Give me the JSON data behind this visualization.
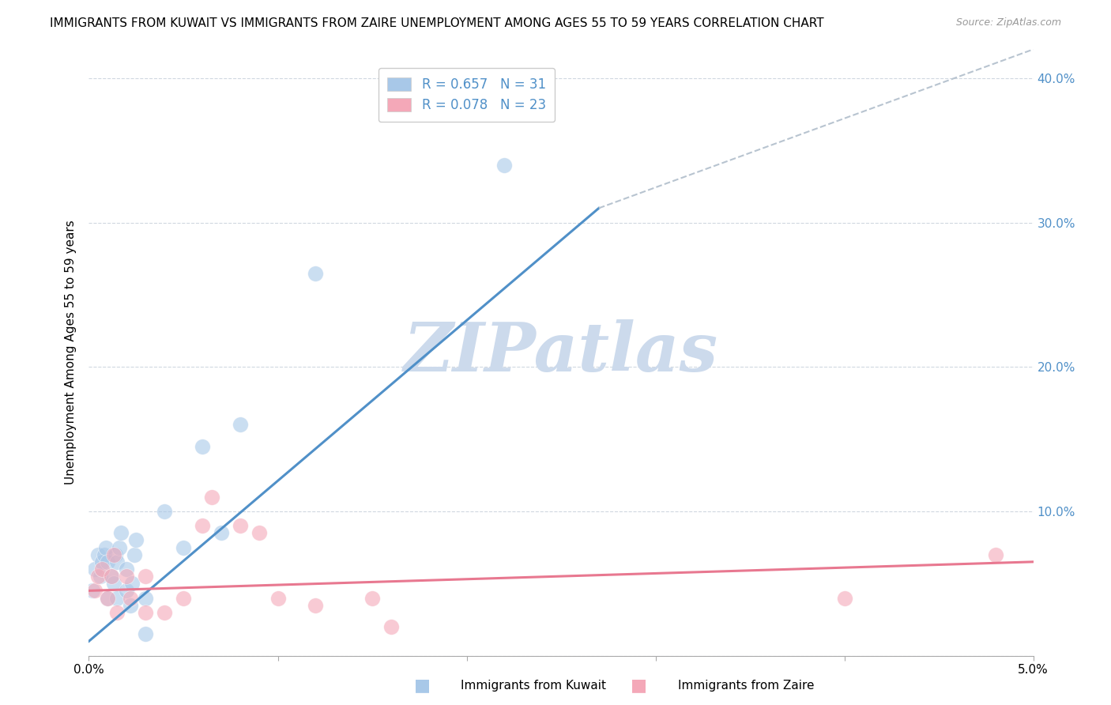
{
  "title": "IMMIGRANTS FROM KUWAIT VS IMMIGRANTS FROM ZAIRE UNEMPLOYMENT AMONG AGES 55 TO 59 YEARS CORRELATION CHART",
  "source": "Source: ZipAtlas.com",
  "ylabel": "Unemployment Among Ages 55 to 59 years",
  "xlim": [
    0.0,
    0.05
  ],
  "ylim": [
    0.0,
    0.42
  ],
  "x_ticks": [
    0.0,
    0.01,
    0.02,
    0.03,
    0.04,
    0.05
  ],
  "x_tick_labels_show": [
    "0.0%",
    "",
    "",
    "",
    "",
    "5.0%"
  ],
  "y_ticks": [
    0.0,
    0.1,
    0.2,
    0.3,
    0.4
  ],
  "right_y_tick_labels": [
    "",
    "10.0%",
    "20.0%",
    "30.0%",
    "40.0%"
  ],
  "kuwait_R": 0.657,
  "kuwait_N": 31,
  "zaire_R": 0.078,
  "zaire_N": 23,
  "kuwait_color": "#a8c8e8",
  "zaire_color": "#f4a8b8",
  "kuwait_line_color": "#5090c8",
  "zaire_line_color": "#e87890",
  "dashed_line_color": "#b8c4d0",
  "watermark": "ZIPatlas",
  "kuwait_points_x": [
    0.0002,
    0.0003,
    0.0005,
    0.0006,
    0.0007,
    0.0008,
    0.0009,
    0.001,
    0.001,
    0.0012,
    0.0013,
    0.0014,
    0.0015,
    0.0015,
    0.0016,
    0.0017,
    0.002,
    0.002,
    0.0022,
    0.0023,
    0.0024,
    0.0025,
    0.003,
    0.003,
    0.004,
    0.005,
    0.006,
    0.007,
    0.008,
    0.012,
    0.022
  ],
  "kuwait_points_y": [
    0.045,
    0.06,
    0.07,
    0.055,
    0.065,
    0.07,
    0.075,
    0.04,
    0.065,
    0.055,
    0.05,
    0.07,
    0.04,
    0.065,
    0.075,
    0.085,
    0.045,
    0.06,
    0.035,
    0.05,
    0.07,
    0.08,
    0.015,
    0.04,
    0.1,
    0.075,
    0.145,
    0.085,
    0.16,
    0.265,
    0.34
  ],
  "zaire_points_x": [
    0.0003,
    0.0005,
    0.0007,
    0.001,
    0.0012,
    0.0013,
    0.0015,
    0.002,
    0.0022,
    0.003,
    0.003,
    0.004,
    0.005,
    0.006,
    0.0065,
    0.008,
    0.009,
    0.01,
    0.012,
    0.015,
    0.016,
    0.04,
    0.048
  ],
  "zaire_points_y": [
    0.045,
    0.055,
    0.06,
    0.04,
    0.055,
    0.07,
    0.03,
    0.055,
    0.04,
    0.03,
    0.055,
    0.03,
    0.04,
    0.09,
    0.11,
    0.09,
    0.085,
    0.04,
    0.035,
    0.04,
    0.02,
    0.04,
    0.07
  ],
  "kuwait_line_x": [
    0.0,
    0.027
  ],
  "kuwait_line_y": [
    0.01,
    0.31
  ],
  "kuwait_line_solid_end": 0.027,
  "dashed_line_x": [
    0.027,
    0.05
  ],
  "dashed_line_y": [
    0.31,
    0.42
  ],
  "zaire_line_x": [
    0.0,
    0.05
  ],
  "zaire_line_y": [
    0.045,
    0.065
  ],
  "legend_label_kuwait": "Immigrants from Kuwait",
  "legend_label_zaire": "Immigrants from Zaire",
  "background_color": "#ffffff",
  "grid_color": "#d0d8e0",
  "title_fontsize": 11,
  "axis_label_fontsize": 11,
  "tick_fontsize": 11,
  "tick_color_right": "#5090c8",
  "scatter_size": 200,
  "scatter_alpha": 0.6
}
